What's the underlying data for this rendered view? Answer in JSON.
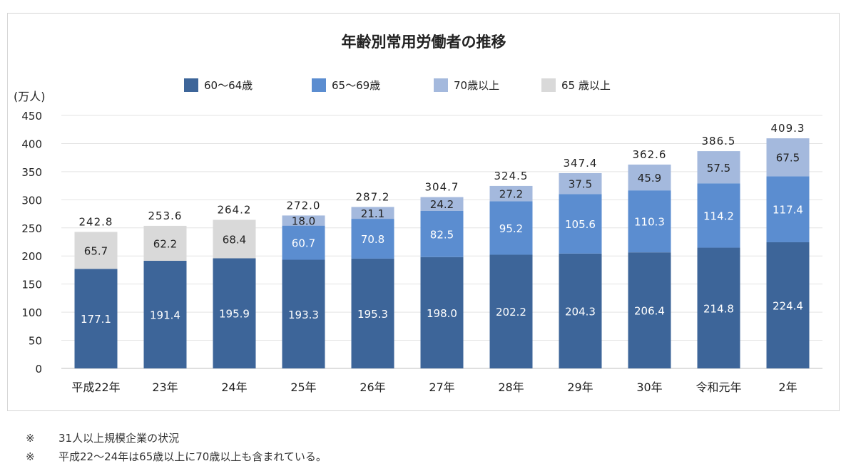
{
  "chart_data": {
    "type": "bar",
    "stacked": true,
    "title": "年齢別常用労働者の推移",
    "ylabel": "(万人)",
    "ylim": [
      0,
      450
    ],
    "yticks": [
      0,
      50,
      100,
      150,
      200,
      250,
      300,
      350,
      400,
      450
    ],
    "grid": true,
    "legend_position": "top",
    "categories": [
      "平成22年",
      "23年",
      "24年",
      "25年",
      "26年",
      "27年",
      "28年",
      "29年",
      "30年",
      "令和元年",
      "2年"
    ],
    "series": [
      {
        "name": "60～64歳",
        "color": "#3d6599",
        "label_color": "#ffffff",
        "values": [
          177.1,
          191.4,
          195.9,
          193.3,
          195.3,
          198.0,
          202.2,
          204.3,
          206.4,
          214.8,
          224.4
        ],
        "labels": [
          "177.1",
          "191.4",
          "195.9",
          "193.3",
          "195.3",
          "198.0",
          "202.2",
          "204.3",
          "206.4",
          "214.8",
          "224.4"
        ]
      },
      {
        "name": "65～69歳",
        "color": "#5b8dd0",
        "label_color": "#ffffff",
        "values": [
          null,
          null,
          null,
          60.7,
          70.8,
          82.5,
          95.2,
          105.6,
          110.3,
          114.2,
          117.4
        ],
        "labels": [
          "",
          "",
          "",
          "60.7",
          "70.8",
          "82.5",
          "95.2",
          "105.6",
          "110.3",
          "114.2",
          "117.4"
        ]
      },
      {
        "name": "70歳以上",
        "color": "#a4b9dd",
        "label_color": "#222222",
        "values": [
          null,
          null,
          null,
          18.0,
          21.1,
          24.2,
          27.2,
          37.5,
          45.9,
          57.5,
          67.5
        ],
        "labels": [
          "",
          "",
          "",
          "18.0",
          "21.1",
          "24.2",
          "27.2",
          "37.5",
          "45.9",
          "57.5",
          "67.5"
        ]
      },
      {
        "name": "65 歳以上",
        "color": "#d9d9d9",
        "label_color": "#222222",
        "values": [
          65.7,
          62.2,
          68.4,
          null,
          null,
          null,
          null,
          null,
          null,
          null,
          null
        ],
        "labels": [
          "65.7",
          "62.2",
          "68.4",
          "",
          "",
          "",
          "",
          "",
          "",
          "",
          ""
        ]
      }
    ],
    "totals": [
      242.8,
      253.6,
      264.2,
      272.0,
      287.2,
      304.7,
      324.5,
      347.4,
      362.6,
      386.5,
      409.3
    ],
    "total_labels": [
      "242.8",
      "253.6",
      "264.2",
      "272.0",
      "287.2",
      "304.7",
      "324.5",
      "347.4",
      "362.6",
      "386.5",
      "409.3"
    ]
  },
  "notes": [
    {
      "mark": "※",
      "text": "31人以上規模企業の状況"
    },
    {
      "mark": "※",
      "text": "平成22～24年は65歳以上に70歳以上も含まれている。"
    }
  ]
}
